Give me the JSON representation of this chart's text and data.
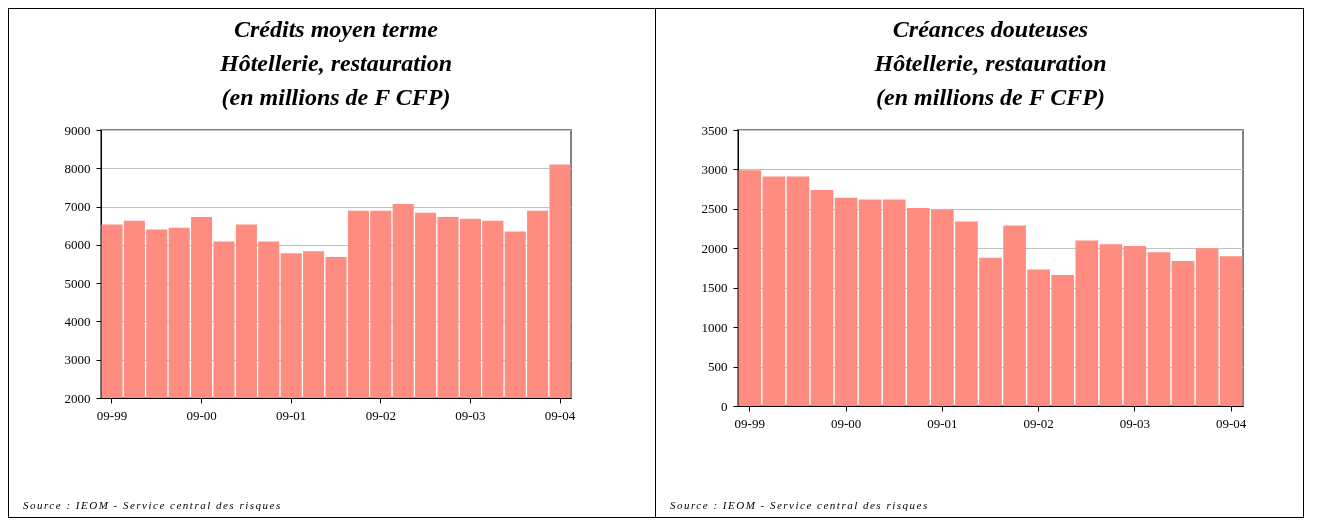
{
  "chart_data": [
    {
      "type": "bar",
      "title": "Crédits moyen terme\nHôtellerie, restauration\n(en millions de F CFP)",
      "categories": [
        "09-99",
        null,
        null,
        null,
        "09-00",
        null,
        null,
        null,
        "09-01",
        null,
        null,
        null,
        "09-02",
        null,
        null,
        null,
        "09-03",
        null,
        null,
        null,
        "09-04"
      ],
      "values": [
        6530,
        6630,
        6400,
        6450,
        6730,
        6090,
        6530,
        6090,
        5780,
        5830,
        5680,
        6890,
        6890,
        7070,
        6840,
        6730,
        6680,
        6630,
        6350,
        6890,
        8100
      ],
      "color": "#ff8c80",
      "ylim": [
        2000,
        9000
      ],
      "yticks": [
        2000,
        3000,
        4000,
        5000,
        6000,
        7000,
        8000,
        9000
      ],
      "grid": "y",
      "annotations": [
        "Source : IEOM - Service central des risques"
      ]
    },
    {
      "type": "bar",
      "title": "Créances douteuses\nHôtellerie, restauration\n(en millions de F CFP)",
      "categories": [
        "09-99",
        null,
        null,
        null,
        "09-00",
        null,
        null,
        null,
        "09-01",
        null,
        null,
        null,
        "09-02",
        null,
        null,
        null,
        "09-03",
        null,
        null,
        null,
        "09-04"
      ],
      "values": [
        2990,
        2910,
        2910,
        2740,
        2640,
        2620,
        2620,
        2510,
        2490,
        2340,
        1880,
        2290,
        1730,
        1660,
        2100,
        2050,
        2030,
        1950,
        1840,
        2000,
        1900
      ],
      "color": "#ff8c80",
      "ylim": [
        0,
        3500
      ],
      "yticks": [
        0,
        500,
        1000,
        1500,
        2000,
        2500,
        3000,
        3500
      ],
      "grid": "y",
      "annotations": [
        "Source : IEOM - Service central des risques"
      ]
    }
  ]
}
